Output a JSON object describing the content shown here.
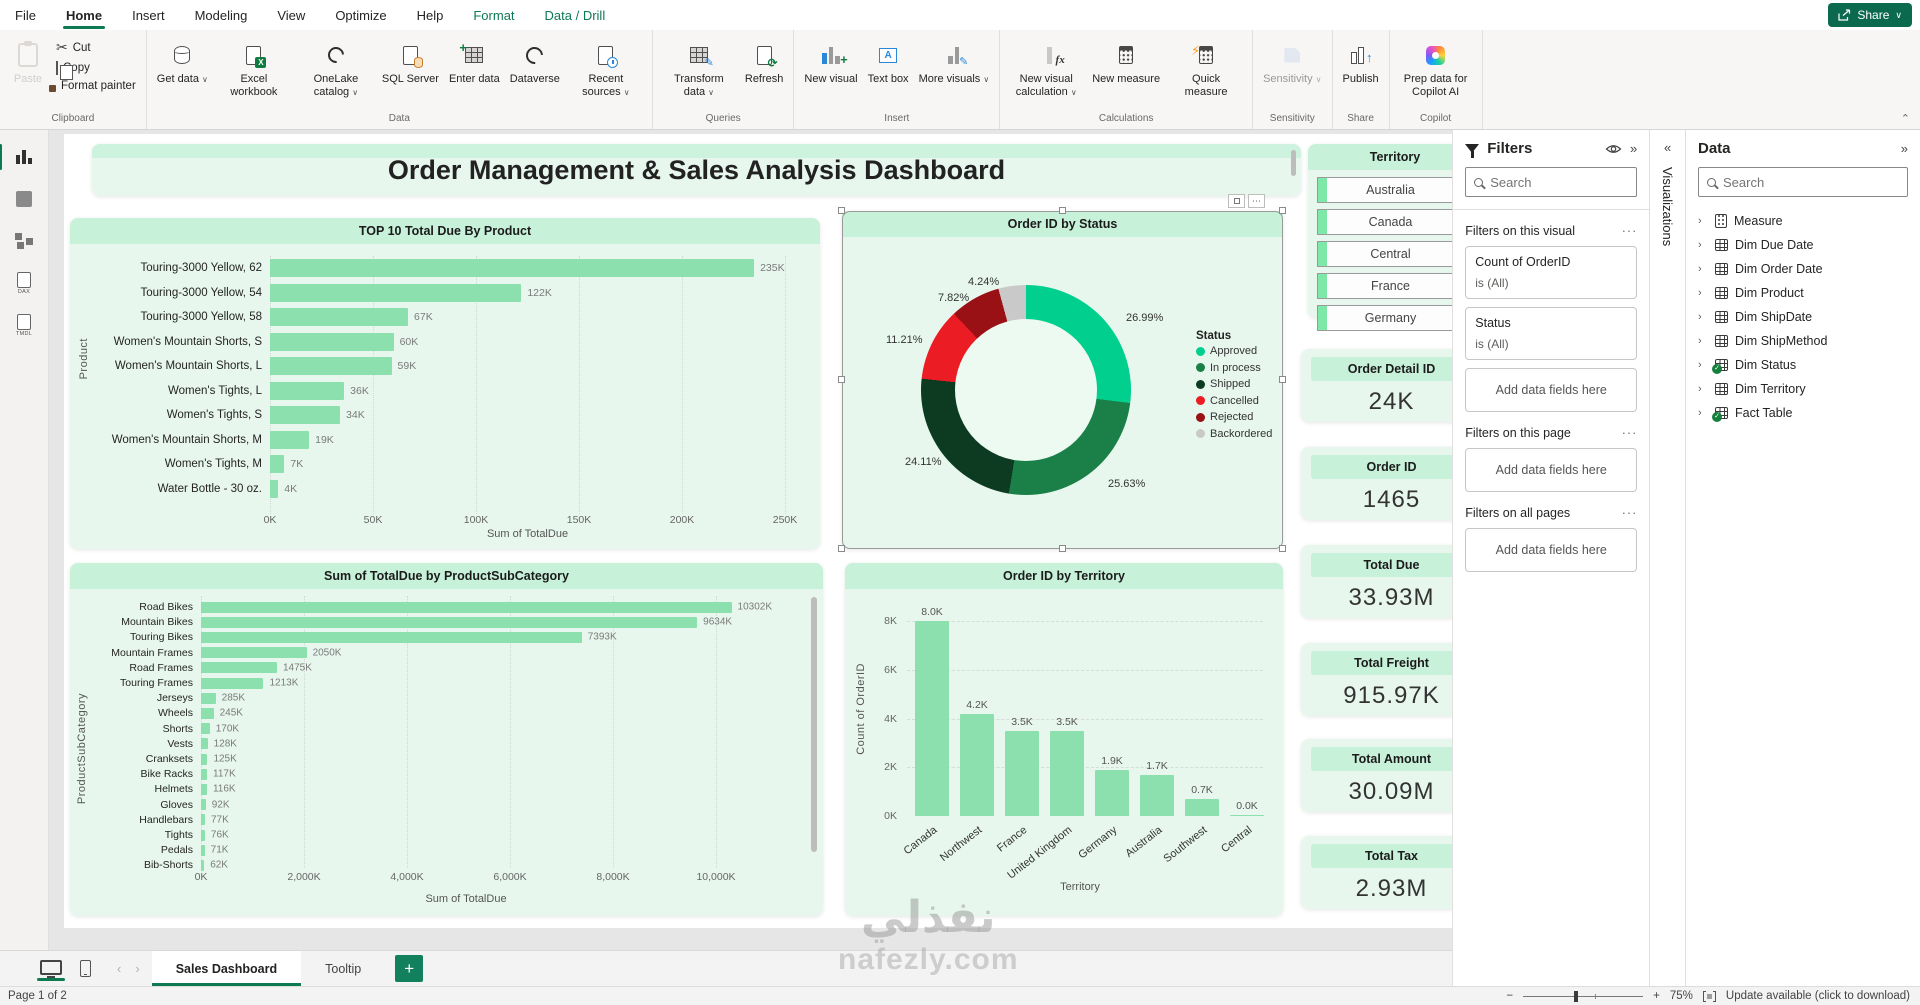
{
  "app": {
    "menu": [
      {
        "label": "File",
        "state": "plain"
      },
      {
        "label": "Home",
        "state": "active"
      },
      {
        "label": "Insert",
        "state": "plain"
      },
      {
        "label": "Modeling",
        "state": "plain"
      },
      {
        "label": "View",
        "state": "plain"
      },
      {
        "label": "Optimize",
        "state": "plain"
      },
      {
        "label": "Help",
        "state": "plain"
      },
      {
        "label": "Format",
        "state": "contextual"
      },
      {
        "label": "Data / Drill",
        "state": "contextual"
      }
    ],
    "share_label": "Share"
  },
  "ribbon": {
    "groups": [
      {
        "label": "Clipboard",
        "buttons": [
          {
            "label": "Paste",
            "icon": "paste-icon",
            "big": true,
            "disabled": true
          },
          {
            "label": "Cut",
            "icon": "cut-icon"
          },
          {
            "label": "Copy",
            "icon": "copy-icon"
          },
          {
            "label": "Format painter",
            "icon": "format-painter-icon"
          }
        ]
      },
      {
        "label": "Data",
        "buttons": [
          {
            "label": "Get data",
            "icon": "get-data-icon",
            "big": true,
            "dropdown": true
          },
          {
            "label": "Excel workbook",
            "icon": "excel-workbook-icon",
            "big": true
          },
          {
            "label": "OneLake catalog",
            "icon": "onelake-icon",
            "big": true,
            "dropdown": true
          },
          {
            "label": "SQL Server",
            "icon": "sql-server-icon",
            "big": true
          },
          {
            "label": "Enter data",
            "icon": "enter-data-icon",
            "big": true
          },
          {
            "label": "Dataverse",
            "icon": "dataverse-icon",
            "big": true
          },
          {
            "label": "Recent sources",
            "icon": "recent-sources-icon",
            "big": true,
            "dropdown": true
          }
        ]
      },
      {
        "label": "Queries",
        "buttons": [
          {
            "label": "Transform data",
            "icon": "transform-data-icon",
            "big": true,
            "dropdown": true
          },
          {
            "label": "Refresh",
            "icon": "refresh-icon",
            "big": true
          }
        ]
      },
      {
        "label": "Insert",
        "buttons": [
          {
            "label": "New visual",
            "icon": "new-visual-icon",
            "big": true
          },
          {
            "label": "Text box",
            "icon": "text-box-icon",
            "big": true
          },
          {
            "label": "More visuals",
            "icon": "more-visuals-icon",
            "big": true,
            "dropdown": true
          }
        ]
      },
      {
        "label": "Calculations",
        "buttons": [
          {
            "label": "New visual calculation",
            "icon": "new-visual-calculation-icon",
            "big": true,
            "dropdown": true
          },
          {
            "label": "New measure",
            "icon": "new-measure-icon",
            "big": true
          },
          {
            "label": "Quick measure",
            "icon": "quick-measure-icon",
            "big": true
          }
        ]
      },
      {
        "label": "Sensitivity",
        "buttons": [
          {
            "label": "Sensitivity",
            "icon": "sensitivity-icon",
            "big": true,
            "dropdown": true,
            "disabled": true
          }
        ]
      },
      {
        "label": "Share",
        "buttons": [
          {
            "label": "Publish",
            "icon": "publish-icon",
            "big": true
          }
        ]
      },
      {
        "label": "Copilot",
        "buttons": [
          {
            "label": "Prep data for Copilot AI",
            "icon": "copilot-icon",
            "big": true
          }
        ]
      }
    ]
  },
  "left_rail": [
    {
      "name": "report-view",
      "active": true
    },
    {
      "name": "table-view",
      "active": false
    },
    {
      "name": "model-view",
      "active": false
    },
    {
      "name": "dax-query-view",
      "caption": "DAX",
      "active": false
    },
    {
      "name": "tmdl-view",
      "caption": "TMDL",
      "active": false
    }
  ],
  "canvas": {
    "title": "Order Management & Sales Analysis Dashboard",
    "watermark_line1": "نفذلي",
    "watermark_line2": "nafezly.com"
  },
  "chart_data": [
    {
      "type": "bar",
      "orientation": "horizontal",
      "title": "TOP 10 Total Due By Product",
      "xlabel": "Sum of TotalDue",
      "ylabel": "Product",
      "xlim": [
        0,
        250
      ],
      "xticks": [
        "0K",
        "50K",
        "100K",
        "150K",
        "200K",
        "250K"
      ],
      "categories": [
        "Touring-3000 Yellow, 62",
        "Touring-3000 Yellow, 54",
        "Touring-3000 Yellow, 58",
        "Women's Mountain Shorts, S",
        "Women's Mountain Shorts, L",
        "Women's Tights, L",
        "Women's Tights, S",
        "Women's Mountain Shorts, M",
        "Women's Tights, M",
        "Water Bottle - 30 oz."
      ],
      "values": [
        235,
        122,
        67,
        60,
        59,
        36,
        34,
        19,
        7,
        4
      ],
      "value_labels": [
        "235K",
        "122K",
        "67K",
        "60K",
        "59K",
        "36K",
        "34K",
        "19K",
        "7K",
        "4K"
      ],
      "bar_color": "#8ce0ad",
      "grid": true
    },
    {
      "type": "pie",
      "title": "Order ID by Status",
      "legend_title": "Status",
      "legend_position": "right",
      "slices": [
        {
          "label": "Approved",
          "pct": 26.99,
          "color": "#00cf8d"
        },
        {
          "label": "In process",
          "pct": 25.63,
          "color": "#1a8048"
        },
        {
          "label": "Shipped",
          "pct": 24.11,
          "color": "#0d3b21"
        },
        {
          "label": "Cancelled",
          "pct": 11.21,
          "color": "#ec1c24"
        },
        {
          "label": "Rejected",
          "pct": 7.82,
          "color": "#991015"
        },
        {
          "label": "Backordered",
          "pct": 4.24,
          "color": "#c9c9c9"
        }
      ],
      "pct_labels": [
        "26.99%",
        "25.63%",
        "24.11%",
        "11.21%",
        "7.82%",
        "4.24%"
      ]
    },
    {
      "type": "bar",
      "orientation": "horizontal",
      "title": "Sum of TotalDue by ProductSubCategory",
      "xlabel": "Sum of TotalDue",
      "ylabel": "ProductSubCategory",
      "xlim": [
        0,
        11000
      ],
      "xticks": [
        "0K",
        "2,000K",
        "4,000K",
        "6,000K",
        "8,000K",
        "10,000K"
      ],
      "categories": [
        "Road Bikes",
        "Mountain Bikes",
        "Touring Bikes",
        "Mountain Frames",
        "Road Frames",
        "Touring Frames",
        "Jerseys",
        "Wheels",
        "Shorts",
        "Vests",
        "Cranksets",
        "Bike Racks",
        "Helmets",
        "Gloves",
        "Handlebars",
        "Tights",
        "Pedals",
        "Bib-Shorts"
      ],
      "values": [
        10302,
        9634,
        7393,
        2050,
        1475,
        1213,
        285,
        245,
        170,
        128,
        125,
        117,
        116,
        92,
        77,
        76,
        71,
        62
      ],
      "value_labels": [
        "10302K",
        "9634K",
        "7393K",
        "2050K",
        "1475K",
        "1213K",
        "285K",
        "245K",
        "170K",
        "128K",
        "125K",
        "117K",
        "116K",
        "92K",
        "77K",
        "76K",
        "71K",
        "62K"
      ],
      "bar_color": "#8ce0ad",
      "grid": true
    },
    {
      "type": "bar",
      "orientation": "vertical",
      "title": "Order ID by Territory",
      "xlabel": "Territory",
      "ylabel": "Count of OrderID",
      "ylim": [
        0,
        8.8
      ],
      "yticks": [
        "0K",
        "2K",
        "4K",
        "6K",
        "8K"
      ],
      "categories": [
        "Canada",
        "Northwest",
        "France",
        "United Kingdom",
        "Germany",
        "Australia",
        "Southwest",
        "Central"
      ],
      "values": [
        8.0,
        4.2,
        3.5,
        3.5,
        1.9,
        1.7,
        0.7,
        0.03
      ],
      "value_labels": [
        "8.0K",
        "4.2K",
        "3.5K",
        "3.5K",
        "1.9K",
        "1.7K",
        "0.7K",
        "0.0K"
      ],
      "bar_color": "#8ce0ad",
      "grid": true
    }
  ],
  "slicer": {
    "title": "Territory",
    "items": [
      "Australia",
      "Canada",
      "Central",
      "France",
      "Germany"
    ]
  },
  "kpis": [
    {
      "title": "Order Detail ID",
      "value": "24K"
    },
    {
      "title": "Order ID",
      "value": "1465"
    },
    {
      "title": "Total Due",
      "value": "33.93M"
    },
    {
      "title": "Total Freight",
      "value": "915.97K"
    },
    {
      "title": "Total Amount",
      "value": "30.09M"
    },
    {
      "title": "Total Tax",
      "value": "2.93M"
    }
  ],
  "filters_pane": {
    "title": "Filters",
    "search_placeholder": "Search",
    "sections": [
      {
        "label": "Filters on this visual",
        "cards": [
          {
            "name": "Count of OrderID",
            "condition": "is (All)"
          },
          {
            "name": "Status",
            "condition": "is (All)"
          }
        ],
        "add_label": "Add data fields here"
      },
      {
        "label": "Filters on this page",
        "cards": [],
        "add_label": "Add data fields here"
      },
      {
        "label": "Filters on all pages",
        "cards": [],
        "add_label": "Add data fields here"
      }
    ]
  },
  "viz_strip": {
    "title": "Visualizations"
  },
  "data_pane": {
    "title": "Data",
    "search_placeholder": "Search",
    "items": [
      {
        "label": "Measure",
        "icon": "measure-icon",
        "checked": false
      },
      {
        "label": "Dim Due Date",
        "icon": "table-icon",
        "checked": false
      },
      {
        "label": "Dim Order Date",
        "icon": "table-icon",
        "checked": false
      },
      {
        "label": "Dim Product",
        "icon": "table-icon",
        "checked": false
      },
      {
        "label": "Dim ShipDate",
        "icon": "table-icon",
        "checked": false
      },
      {
        "label": "Dim ShipMethod",
        "icon": "table-icon",
        "checked": false
      },
      {
        "label": "Dim Status",
        "icon": "table-icon",
        "checked": true
      },
      {
        "label": "Dim Territory",
        "icon": "table-icon",
        "checked": false
      },
      {
        "label": "Fact Table",
        "icon": "table-icon",
        "checked": true
      }
    ]
  },
  "bottom": {
    "tabs": [
      {
        "label": "Sales Dashboard",
        "active": true
      },
      {
        "label": "Tooltip",
        "active": false
      }
    ],
    "add_page": "+",
    "page_indicator": "Page 1 of 2",
    "zoom_level": "75%",
    "update_text": "Update available (click to download)"
  }
}
